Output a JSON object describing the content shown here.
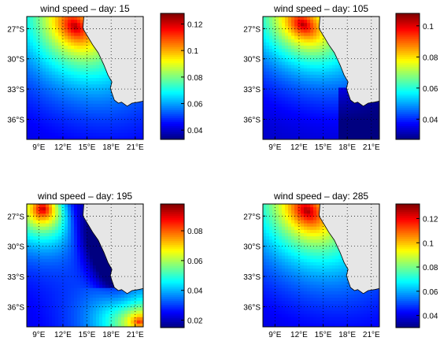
{
  "chart_data": [
    {
      "type": "heatmap",
      "title": "wind speed – day: 15",
      "x_ticks": [
        "9°E",
        "12°E",
        "15°E",
        "18°E",
        "21°E"
      ],
      "y_ticks": [
        "27°S",
        "30°S",
        "33°S",
        "36°S"
      ],
      "xlim": [
        7.5,
        22
      ],
      "ylim": [
        -38,
        -25.8
      ],
      "colorbar": {
        "ticks": [
          0.04,
          0.06,
          0.08,
          0.1,
          0.12
        ],
        "tick_labels": [
          "0.04",
          "0.06",
          "0.08",
          "0.1",
          "0.12"
        ],
        "range": [
          0.033,
          0.128
        ]
      },
      "field": {
        "max_center": [
          13.5,
          -26.8
        ],
        "max_value": 0.125,
        "min_value": 0.038,
        "pattern": "max at north-centre, decreasing south-west"
      },
      "grid": true,
      "land_color": "#e6e6e6"
    },
    {
      "type": "heatmap",
      "title": "wind speed – day: 105",
      "x_ticks": [
        "9°E",
        "12°E",
        "15°E",
        "18°E",
        "21°E"
      ],
      "y_ticks": [
        "27°S",
        "30°S",
        "33°S",
        "36°S"
      ],
      "xlim": [
        7.5,
        22
      ],
      "ylim": [
        -38,
        -25.8
      ],
      "colorbar": {
        "ticks": [
          0.04,
          0.06,
          0.08,
          0.1
        ],
        "tick_labels": [
          "0.04",
          "0.06",
          "0.08",
          "0.1"
        ],
        "range": [
          0.027,
          0.108
        ]
      },
      "field": {
        "max_center": [
          12.5,
          -26.6
        ],
        "max_value": 0.105,
        "min_value": 0.03,
        "pattern": "max in north, weak in south-east"
      },
      "grid": true,
      "land_color": "#e6e6e6"
    },
    {
      "type": "heatmap",
      "title": "wind speed – day: 195",
      "x_ticks": [
        "9°E",
        "12°E",
        "15°E",
        "18°E",
        "21°E"
      ],
      "y_ticks": [
        "27°S",
        "30°S",
        "33°S",
        "36°S"
      ],
      "xlim": [
        7.5,
        22
      ],
      "ylim": [
        -38,
        -25.8
      ],
      "colorbar": {
        "ticks": [
          0.02,
          0.04,
          0.06,
          0.08
        ],
        "tick_labels": [
          "0.02",
          "0.04",
          "0.06",
          "0.08"
        ],
        "range": [
          0.015,
          0.098
        ]
      },
      "field": {
        "max_center": [
          9.5,
          -26.3
        ],
        "max_value": 0.095,
        "secondary_max_center": [
          21.5,
          -37.5
        ],
        "secondary_max_value": 0.09,
        "min_value": 0.02,
        "pattern": "maxima in north-west and south-east, minimum along coast"
      },
      "grid": true,
      "land_color": "#e6e6e6"
    },
    {
      "type": "heatmap",
      "title": "wind speed – day: 285",
      "x_ticks": [
        "9°E",
        "12°E",
        "15°E",
        "18°E",
        "21°E"
      ],
      "y_ticks": [
        "27°S",
        "30°S",
        "33°S",
        "36°S"
      ],
      "xlim": [
        7.5,
        22
      ],
      "ylim": [
        -38,
        -25.8
      ],
      "colorbar": {
        "ticks": [
          0.04,
          0.06,
          0.08,
          0.1,
          0.12
        ],
        "tick_labels": [
          "0.04",
          "0.06",
          "0.08",
          "0.1",
          "0.12"
        ],
        "range": [
          0.03,
          0.132
        ]
      },
      "field": {
        "max_center": [
          13.0,
          -26.5
        ],
        "max_value": 0.13,
        "min_value": 0.035,
        "pattern": "max at north-centre, decreasing south"
      },
      "grid": true,
      "land_color": "#e6e6e6"
    }
  ]
}
